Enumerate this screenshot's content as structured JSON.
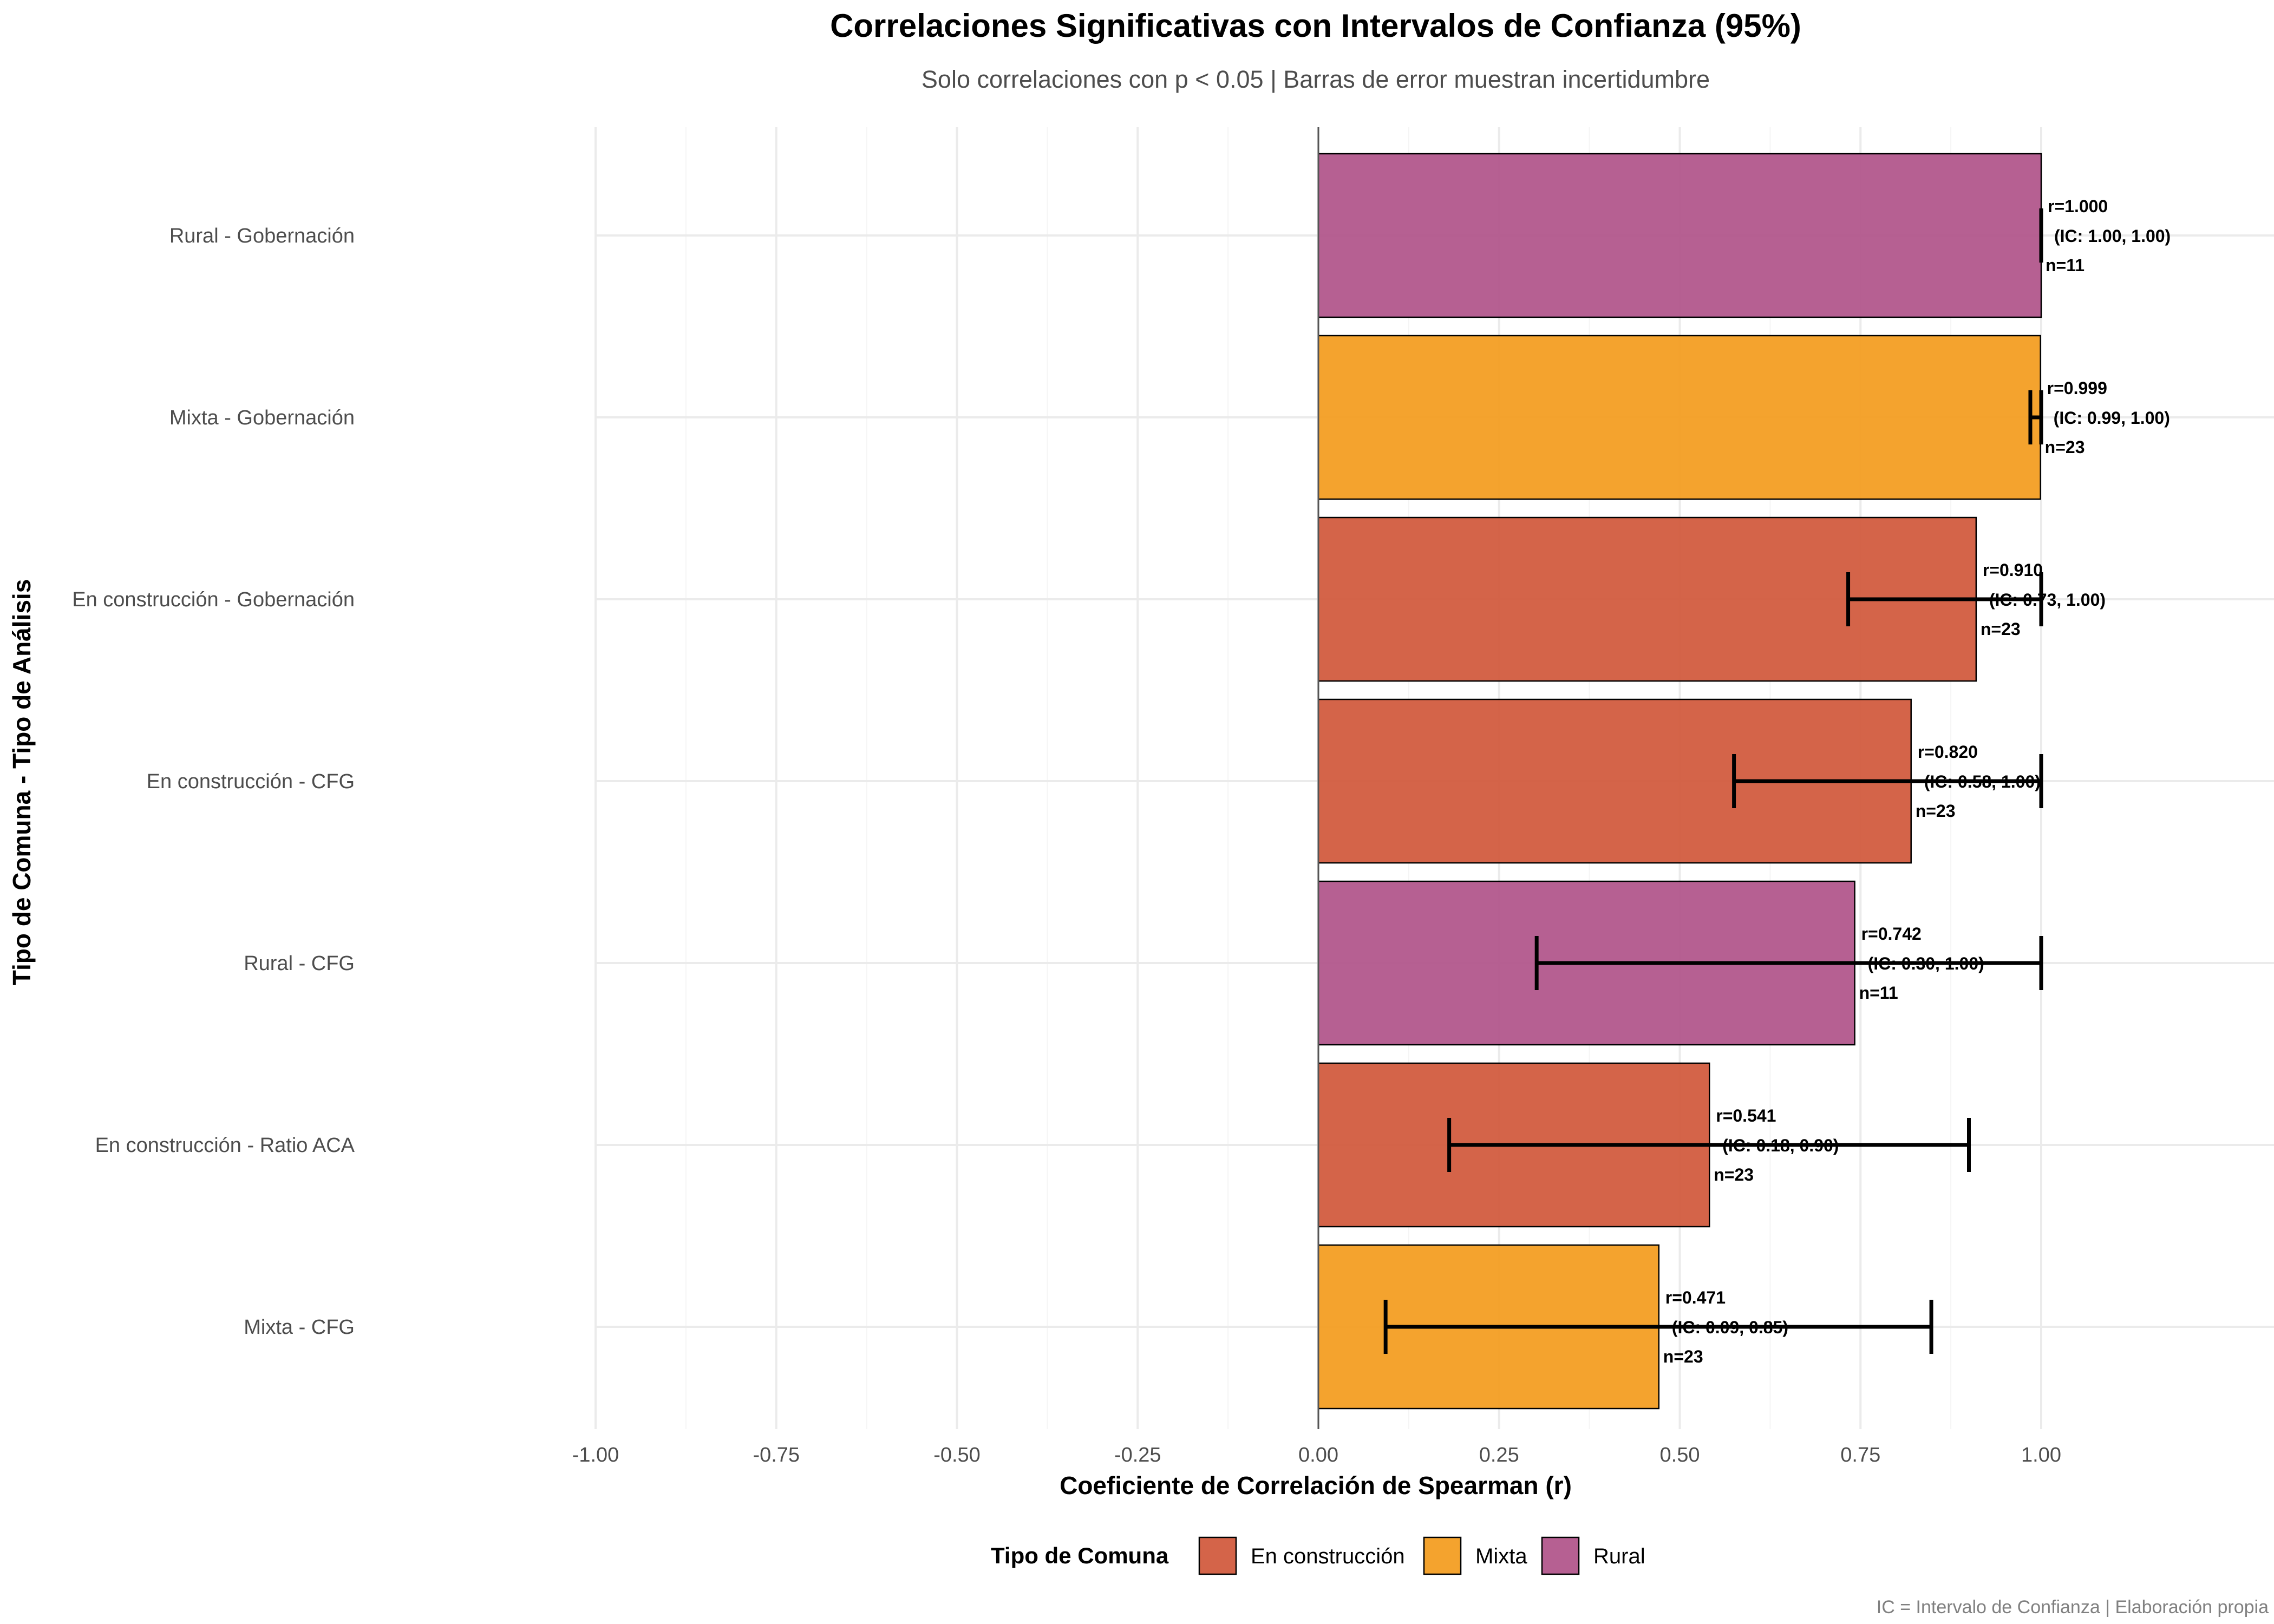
{
  "chart_data": {
    "type": "bar",
    "orientation": "horizontal",
    "title": "Correlaciones Significativas con Intervalos de Confianza (95%)",
    "subtitle": "Solo correlaciones con p < 0.05 | Barras de error muestran incertidumbre",
    "xlabel": "Coeficiente de Correlación de Spearman (r)",
    "ylabel": "Tipo de Comuna - Tipo de Análisis",
    "caption": "IC = Intervalo de Confianza | Elaboración propia",
    "xlim": [
      -1.0,
      1.0
    ],
    "x_ticks": [
      -1.0,
      -0.75,
      -0.5,
      -0.25,
      0.0,
      0.25,
      0.5,
      0.75,
      1.0
    ],
    "x_tick_labels": [
      "-1.00",
      "-0.75",
      "-0.50",
      "-0.25",
      "0.00",
      "0.25",
      "0.50",
      "0.75",
      "1.00"
    ],
    "grid": true,
    "legend_position": "bottom",
    "legend_title": "Tipo de Comuna",
    "legend": [
      {
        "name": "En construcción",
        "color": "#D1583B"
      },
      {
        "name": "Mixta",
        "color": "#F39C1E"
      },
      {
        "name": "Rural",
        "color": "#B0548A"
      }
    ],
    "bars": [
      {
        "label": "Rural - Gobernación",
        "group": "Rural",
        "r": 1.0,
        "ci": [
          1.0,
          1.0
        ],
        "r_text": "r=1.000",
        "ci_text": "(IC: 1.00, 1.00)",
        "n_text": "n=11"
      },
      {
        "label": "Mixta - Gobernación",
        "group": "Mixta",
        "r": 0.999,
        "ci": [
          0.985,
          1.0
        ],
        "r_text": "r=0.999",
        "ci_text": "(IC: 0.99, 1.00)",
        "n_text": "n=23"
      },
      {
        "label": "En construcción - Gobernación",
        "group": "En construcción",
        "r": 0.91,
        "ci": [
          0.733,
          1.0
        ],
        "r_text": "r=0.910",
        "ci_text": "(IC: 0.73, 1.00)",
        "n_text": "n=23"
      },
      {
        "label": "En construcción - CFG",
        "group": "En construcción",
        "r": 0.82,
        "ci": [
          0.575,
          1.0
        ],
        "r_text": "r=0.820",
        "ci_text": "(IC: 0.58, 1.00)",
        "n_text": "n=23"
      },
      {
        "label": "Rural - CFG",
        "group": "Rural",
        "r": 0.742,
        "ci": [
          0.302,
          1.0
        ],
        "r_text": "r=0.742",
        "ci_text": "(IC: 0.30, 1.00)",
        "n_text": "n=11"
      },
      {
        "label": "En construcción - Ratio ACA",
        "group": "En construcción",
        "r": 0.541,
        "ci": [
          0.181,
          0.9
        ],
        "r_text": "r=0.541",
        "ci_text": "(IC: 0.18, 0.90)",
        "n_text": "n=23"
      },
      {
        "label": "Mixta - CFG",
        "group": "Mixta",
        "r": 0.471,
        "ci": [
          0.093,
          0.848
        ],
        "r_text": "r=0.471",
        "ci_text": "(IC: 0.09, 0.85)",
        "n_text": "n=23"
      }
    ]
  }
}
